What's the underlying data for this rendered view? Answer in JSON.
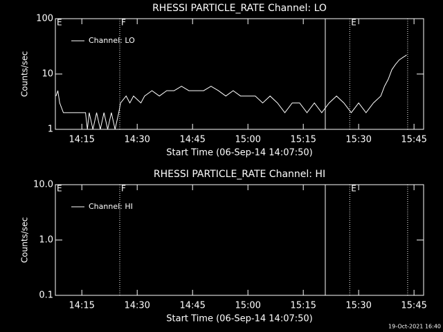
{
  "chart_data": [
    {
      "type": "line",
      "title": "RHESSI PARTICLE_RATE Channel: LO",
      "xlabel": "Start Time (06-Sep-14 14:07:50)",
      "ylabel": "Counts/sec",
      "xlim": [
        7.83,
        107.6
      ],
      "xticks": [
        {
          "value": 15,
          "label": "14:15"
        },
        {
          "value": 30,
          "label": "14:30"
        },
        {
          "value": 45,
          "label": "14:45"
        },
        {
          "value": 60,
          "label": "15:00"
        },
        {
          "value": 75,
          "label": "15:15"
        },
        {
          "value": 90,
          "label": "15:30"
        },
        {
          "value": 105,
          "label": "15:45"
        }
      ],
      "ylim": [
        1,
        100
      ],
      "yticks": [
        1,
        10,
        100
      ],
      "log_y": true,
      "legend": "upper left",
      "vlines": [
        {
          "x": 7.83,
          "style": "solid",
          "label": "E"
        },
        {
          "x": 25.27,
          "style": "dotted",
          "label": "F"
        },
        {
          "x": 80.96,
          "style": "solid"
        },
        {
          "x": 87.58,
          "style": "dotted",
          "label": "E"
        },
        {
          "x": 103.27,
          "style": "dotted"
        }
      ],
      "x": [
        8,
        8.5,
        9,
        10,
        12,
        16,
        16.5,
        17,
        18,
        19,
        20,
        21,
        22,
        23,
        24,
        25,
        25.5,
        27,
        28,
        29,
        31,
        32,
        34,
        36,
        38,
        40,
        42,
        44,
        46,
        48,
        50,
        52,
        54,
        56,
        58,
        60,
        62,
        64,
        66,
        68,
        70,
        72,
        74,
        76,
        78,
        80,
        82,
        84,
        86,
        88,
        90,
        92,
        94,
        96,
        97,
        98,
        99,
        100,
        101,
        102,
        103
      ],
      "series": [
        {
          "name": "Channel: LO",
          "color": "#ffffff",
          "values": [
            4,
            5,
            3,
            2,
            2,
            2,
            1,
            2,
            1,
            2,
            1,
            2,
            1,
            2,
            1,
            2,
            3,
            4,
            3,
            4,
            3,
            4,
            5,
            4,
            5,
            5,
            6,
            5,
            5,
            5,
            6,
            5,
            4,
            5,
            4,
            4,
            4,
            3,
            4,
            3,
            2,
            3,
            3,
            2,
            3,
            2,
            3,
            4,
            3,
            2,
            3,
            2,
            3,
            4,
            6,
            8,
            12,
            15,
            18,
            20,
            22
          ]
        }
      ]
    },
    {
      "type": "line",
      "title": "RHESSI PARTICLE_RATE Channel: HI",
      "xlabel": "Start Time (06-Sep-14 14:07:50)",
      "ylabel": "Counts/sec",
      "xlim": [
        7.83,
        107.6
      ],
      "xticks": [
        {
          "value": 15,
          "label": "14:15"
        },
        {
          "value": 30,
          "label": "14:30"
        },
        {
          "value": 45,
          "label": "14:45"
        },
        {
          "value": 60,
          "label": "15:00"
        },
        {
          "value": 75,
          "label": "15:15"
        },
        {
          "value": 90,
          "label": "15:30"
        },
        {
          "value": 105,
          "label": "15:45"
        }
      ],
      "ylim": [
        0.1,
        10
      ],
      "yticks": [
        0.1,
        {
          "value": 1,
          "label": "1.0"
        },
        {
          "value": 10,
          "label": "10.0"
        }
      ],
      "log_y": true,
      "legend": "upper left",
      "vlines": [
        {
          "x": 7.83,
          "style": "solid",
          "label": "E"
        },
        {
          "x": 25.27,
          "style": "dotted",
          "label": "F"
        },
        {
          "x": 80.96,
          "style": "solid"
        },
        {
          "x": 87.58,
          "style": "dotted",
          "label": "E"
        },
        {
          "x": 103.27,
          "style": "dotted"
        }
      ],
      "x": [],
      "series": [
        {
          "name": "Channel: HI",
          "color": "#ffffff",
          "values": []
        }
      ]
    }
  ],
  "footer": "19-Oct-2021 16:40"
}
